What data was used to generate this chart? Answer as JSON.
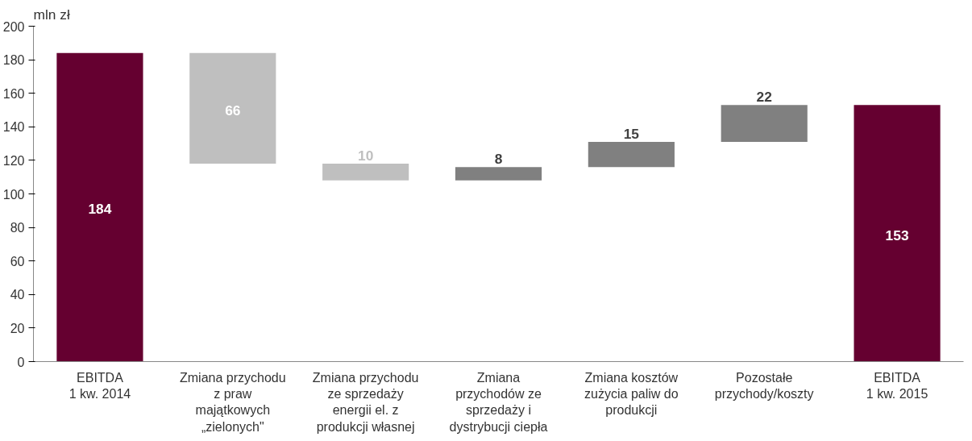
{
  "chart_data": {
    "type": "bar",
    "ylabel": "mln zł",
    "categories": [
      "EBITDA\n1 kw. 2014",
      "Zmiana przychodu\nz praw\nmajątkowych\n„zielonych\"",
      "Zmiana przychodu\nze sprzedaży\nenergii el. z\nprodukcji własnej",
      "Zmiana\nprzychodów ze\nsprzedaży i\ndystrybucji ciepła",
      "Zmiana kosztów\nzużycia paliw do\nprodukcji",
      "Pozostałe\nprzychody/koszty",
      "EBITDA\n1 kw. 2015"
    ],
    "values": [
      184,
      66,
      10,
      8,
      15,
      22,
      153
    ],
    "base": [
      0,
      118,
      108,
      108,
      116,
      131,
      0
    ],
    "colors": [
      "#650030",
      "#bfbfbf",
      "#bfbfbf",
      "#808080",
      "#808080",
      "#808080",
      "#650030"
    ],
    "ylim": [
      0,
      200
    ],
    "yticks": [
      0,
      20,
      40,
      60,
      80,
      100,
      120,
      140,
      160,
      180,
      200
    ],
    "data_labels": true,
    "grid": false
  }
}
